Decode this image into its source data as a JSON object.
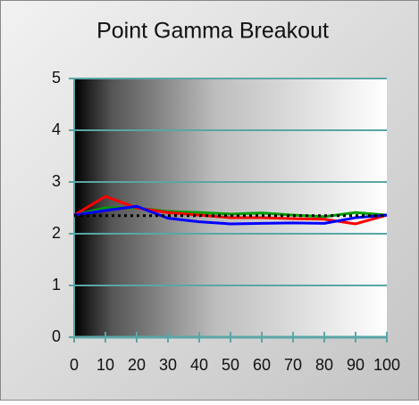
{
  "chart_data": {
    "type": "line",
    "title": "Point Gamma Breakout",
    "x": [
      0,
      10,
      20,
      30,
      40,
      50,
      60,
      70,
      80,
      90,
      100
    ],
    "series": [
      {
        "color": "#00a000",
        "values": [
          2.36,
          2.5,
          2.5,
          2.43,
          2.41,
          2.38,
          2.4,
          2.36,
          2.33,
          2.41,
          2.36
        ]
      },
      {
        "color": "#ff0000",
        "values": [
          2.36,
          2.72,
          2.5,
          2.41,
          2.36,
          2.31,
          2.31,
          2.29,
          2.28,
          2.19,
          2.36
        ]
      },
      {
        "color": "#0000ff",
        "values": [
          2.36,
          2.45,
          2.53,
          2.3,
          2.23,
          2.19,
          2.2,
          2.21,
          2.2,
          2.31,
          2.36
        ]
      },
      {
        "color": "#000000",
        "dashed": true,
        "values": [
          2.35,
          2.35,
          2.35,
          2.35,
          2.35,
          2.35,
          2.35,
          2.35,
          2.35,
          2.35,
          2.35
        ]
      }
    ],
    "xlim": [
      0,
      100
    ],
    "xticks": [
      0,
      10,
      20,
      30,
      40,
      50,
      60,
      70,
      80,
      90,
      100
    ],
    "ylim": [
      0,
      5
    ],
    "yticks": [
      0,
      1,
      2,
      3,
      4,
      5
    ],
    "grid": true,
    "grid_color": "#5aa6a6"
  }
}
